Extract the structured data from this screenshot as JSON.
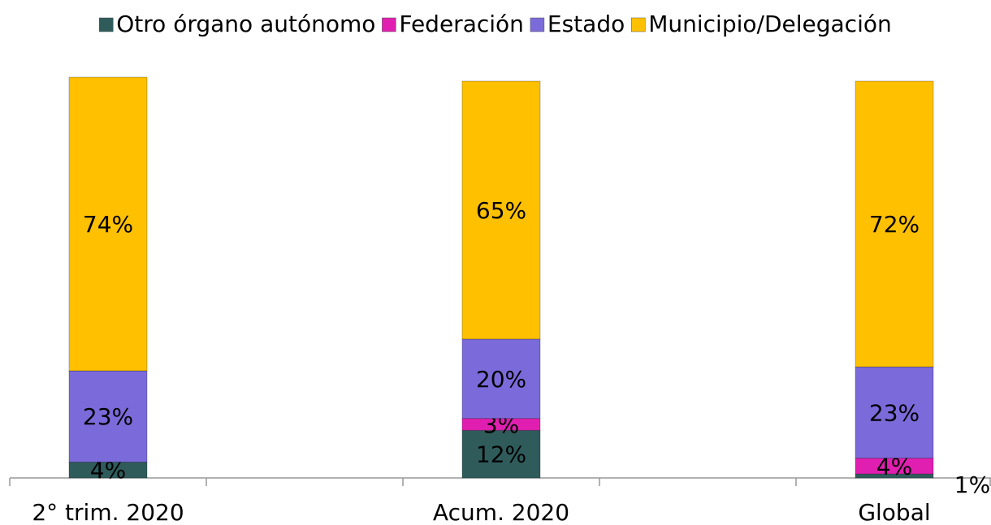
{
  "chart_data": {
    "type": "stacked_bar",
    "categories": [
      "2° trim. 2020",
      null,
      "Acum. 2020",
      null,
      "Global"
    ],
    "ylim": [
      0,
      100
    ],
    "series": [
      {
        "name": "Otro órgano autónomo",
        "color": "#2f5b5b",
        "values": [
          4,
          null,
          12,
          null,
          1
        ],
        "value_labels": [
          "4%",
          null,
          "12%",
          null,
          "1%"
        ]
      },
      {
        "name": "Federación",
        "color": "#e01fb0",
        "values": [
          null,
          null,
          3,
          null,
          4
        ],
        "value_labels": [
          null,
          null,
          "3%",
          null,
          "4%"
        ]
      },
      {
        "name": "Estado",
        "color": "#7b6ad9",
        "values": [
          23,
          null,
          20,
          null,
          23
        ],
        "value_labels": [
          "23%",
          null,
          "20%",
          null,
          "23%"
        ]
      },
      {
        "name": "Municipio/Delegación",
        "color": "#ffc000",
        "values": [
          74,
          null,
          65,
          null,
          72
        ],
        "value_labels": [
          "74%",
          null,
          "65%",
          null,
          "72%"
        ]
      }
    ]
  }
}
